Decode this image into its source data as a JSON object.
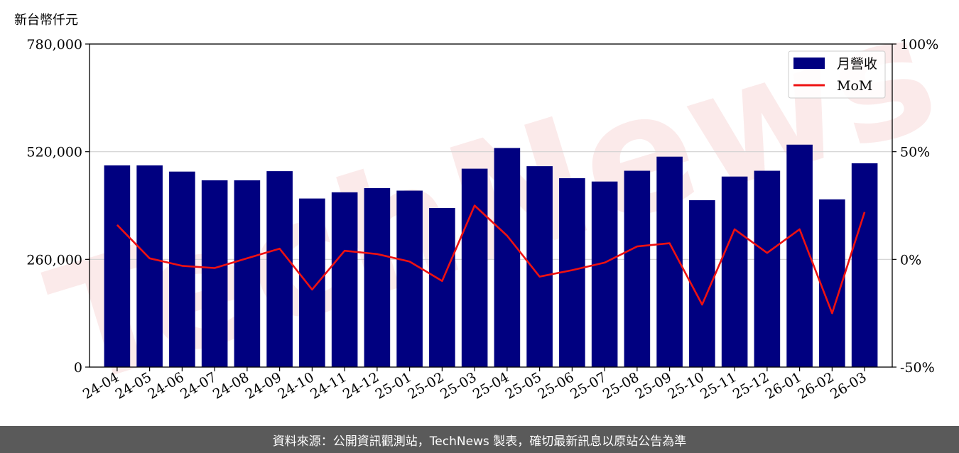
{
  "unit_label": "新台幣仟元",
  "footer_text": "資料來源：公開資訊觀測站，TechNews 製表，確切最新訊息以原站公告為準",
  "watermark": "TechNews",
  "colors": {
    "bar": "#000080",
    "line": "#ee1111",
    "watermark": "#f3c4c4",
    "footer_bg": "#5a5a5a"
  },
  "chart_data": {
    "type": "bar+line",
    "categories": [
      "24-04",
      "24-05",
      "24-06",
      "24-07",
      "24-08",
      "24-09",
      "24-10",
      "24-11",
      "24-12",
      "25-01",
      "25-02",
      "25-03",
      "25-04",
      "25-05",
      "25-06",
      "25-07",
      "25-08",
      "25-09",
      "25-10",
      "25-11",
      "25-12",
      "26-01",
      "26-02",
      "26-03"
    ],
    "series": [
      {
        "name": "月營收",
        "type": "bar",
        "axis": "left",
        "values": [
          487000,
          487000,
          472000,
          451000,
          451000,
          473000,
          407000,
          422000,
          432000,
          426000,
          384000,
          479000,
          529000,
          485000,
          456000,
          448000,
          474000,
          508000,
          403000,
          460000,
          474000,
          537000,
          405000,
          492000
        ]
      },
      {
        "name": "MoM",
        "type": "line",
        "axis": "right",
        "values": [
          16,
          0.5,
          -3,
          -4,
          0.5,
          5,
          -14,
          4,
          2.5,
          -1,
          -10,
          25,
          11,
          -8,
          -5,
          -1.5,
          6,
          7.5,
          -21,
          14,
          3,
          14,
          -25,
          22
        ]
      }
    ],
    "y_left": {
      "range": [
        0,
        780000
      ],
      "ticks": [
        "0",
        "260,000",
        "520,000",
        "780,000"
      ],
      "tick_values": [
        0,
        260000,
        520000,
        780000
      ]
    },
    "y_right": {
      "range": [
        -50,
        100
      ],
      "ticks": [
        "-50%",
        "0%",
        "50%",
        "100%"
      ],
      "tick_values": [
        -50,
        0,
        50,
        100
      ]
    },
    "grid": "horizontal",
    "legend_position": "top-right"
  }
}
